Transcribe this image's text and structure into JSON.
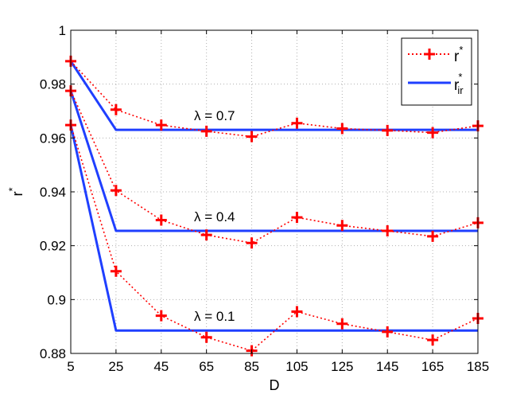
{
  "chart_data": {
    "type": "line",
    "xlabel": "D",
    "ylabel": "r",
    "ylabel_superscript": "*",
    "x": [
      5,
      25,
      45,
      65,
      85,
      105,
      125,
      145,
      165,
      185
    ],
    "xlim": [
      5,
      185
    ],
    "ylim": [
      0.88,
      1.0
    ],
    "x_ticks": [
      "5",
      "25",
      "45",
      "65",
      "85",
      "105",
      "125",
      "145",
      "165",
      "185"
    ],
    "y_ticks": [
      "0.88",
      "0.9",
      "0.92",
      "0.94",
      "0.96",
      "0.98",
      "1"
    ],
    "y_tick_values": [
      0.88,
      0.9,
      0.92,
      0.94,
      0.96,
      0.98,
      1.0
    ],
    "grid": true,
    "legend_position": "top-right",
    "legend": [
      {
        "base": "r",
        "sup": "*",
        "sub": ""
      },
      {
        "base": "r",
        "sup": "*",
        "sub": "ir"
      }
    ],
    "colors": {
      "r_star": "#ff0000",
      "r_ir": "#1f3fff",
      "grid": "#b0b0b0"
    },
    "groups": [
      {
        "annotation": "λ = 0.7",
        "r_star": [
          0.9885,
          0.9705,
          0.9648,
          0.9625,
          0.9605,
          0.9655,
          0.9635,
          0.9628,
          0.962,
          0.9645
        ],
        "r_ir": [
          0.9885,
          0.963,
          0.963,
          0.963,
          0.963,
          0.963,
          0.963,
          0.963,
          0.963,
          0.963
        ]
      },
      {
        "annotation": "λ = 0.4",
        "r_star": [
          0.9775,
          0.9405,
          0.9295,
          0.924,
          0.921,
          0.9305,
          0.9275,
          0.9255,
          0.9235,
          0.9285
        ],
        "r_ir": [
          0.9775,
          0.9255,
          0.9255,
          0.9255,
          0.9255,
          0.9255,
          0.9255,
          0.9255,
          0.9255,
          0.9255
        ]
      },
      {
        "annotation": "λ = 0.1",
        "r_star": [
          0.9648,
          0.9105,
          0.894,
          0.886,
          0.881,
          0.8955,
          0.891,
          0.888,
          0.885,
          0.893
        ],
        "r_ir": [
          0.9648,
          0.8885,
          0.8885,
          0.8885,
          0.8885,
          0.8885,
          0.8885,
          0.8885,
          0.8885,
          0.8885
        ]
      }
    ]
  }
}
